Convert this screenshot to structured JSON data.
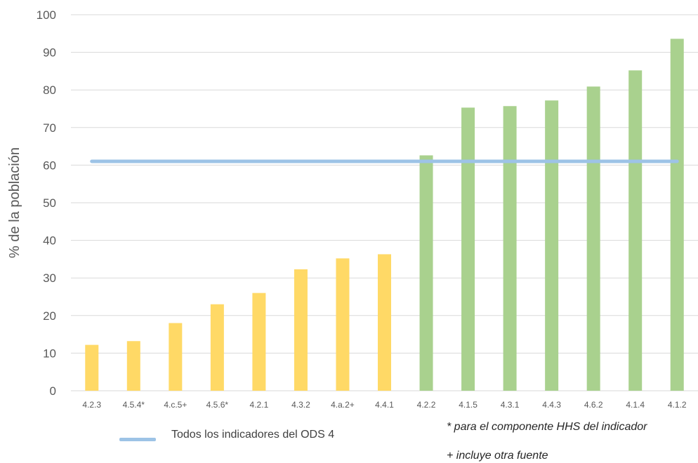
{
  "chart_data": {
    "type": "bar",
    "ylabel": "% de la población",
    "xlabel": "",
    "ylim": [
      0,
      100
    ],
    "yticks": [
      0,
      10,
      20,
      30,
      40,
      50,
      60,
      70,
      80,
      90,
      100
    ],
    "grid": true,
    "categories": [
      "4.2.3",
      "4.5.4*",
      "4.c.5+",
      "4.5.6*",
      "4.2.1",
      "4.3.2",
      "4.a.2+",
      "4.4.1",
      "4.2.2",
      "4.1.5",
      "4.3.1",
      "4.4.3",
      "4.6.2",
      "4.1.4",
      "4.1.2"
    ],
    "values": [
      12.2,
      13.2,
      18,
      23,
      26,
      32.3,
      35.2,
      36.3,
      62.6,
      75.3,
      75.7,
      77.2,
      80.9,
      85.2,
      93.6
    ],
    "colors": [
      "#ffd966",
      "#ffd966",
      "#ffd966",
      "#ffd966",
      "#ffd966",
      "#ffd966",
      "#ffd966",
      "#ffd966",
      "#a9d18e",
      "#a9d18e",
      "#a9d18e",
      "#a9d18e",
      "#a9d18e",
      "#a9d18e",
      "#a9d18e"
    ],
    "reference_line": {
      "name": "Todos los indicadores del ODS 4",
      "value": 61,
      "color": "#9dc3e6"
    },
    "legend_position": "bottom-left"
  },
  "legend": {
    "line_label": "Todos los indicadores del ODS 4"
  },
  "notes": {
    "asterisk": "* para el componente HHS del indicador",
    "plus": "+ incluye otra fuente"
  }
}
